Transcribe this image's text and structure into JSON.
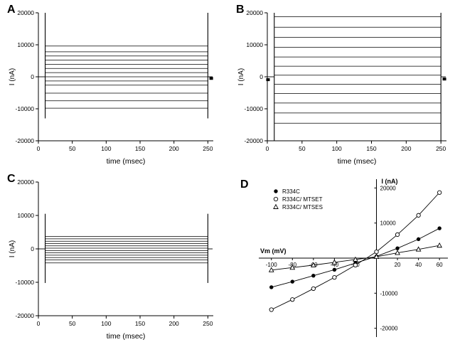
{
  "panels": [
    {
      "label": "A"
    },
    {
      "label": "B"
    },
    {
      "label": "C"
    },
    {
      "label": "D"
    }
  ],
  "chart_data": [
    {
      "panel": "A",
      "type": "line",
      "variant": "voltage-clamp-traces",
      "xlabel": "time (msec)",
      "ylabel": "I (nA)",
      "xlim": [
        0,
        258
      ],
      "ylim": [
        -20000,
        20000
      ],
      "xticks": [
        0,
        50,
        100,
        150,
        200,
        250
      ],
      "yticks": [
        -20000,
        -10000,
        0,
        10000,
        20000
      ],
      "step_start_msec": 10,
      "step_end_msec": 250,
      "trace_levels_nA": [
        9600,
        7800,
        6500,
        5200,
        3900,
        2600,
        1300,
        0,
        -1300,
        -2600,
        -5100,
        -7500,
        -9800
      ],
      "spike_range_nA": [
        -13000,
        20000
      ],
      "markers": [
        {
          "x": 255,
          "y": -500
        }
      ]
    },
    {
      "panel": "B",
      "type": "line",
      "variant": "voltage-clamp-traces",
      "xlabel": "time (msec)",
      "ylabel": "I (nA)",
      "xlim": [
        0,
        258
      ],
      "ylim": [
        -20000,
        20000
      ],
      "xticks": [
        0,
        50,
        100,
        150,
        200,
        250
      ],
      "yticks": [
        -20000,
        -10000,
        0,
        10000,
        20000
      ],
      "step_start_msec": 10,
      "step_end_msec": 250,
      "trace_levels_nA": [
        18800,
        15500,
        12300,
        9200,
        6200,
        3300,
        500,
        -2300,
        -5200,
        -8200,
        -11300,
        -14500
      ],
      "spike_range_nA": [
        -20000,
        20000
      ],
      "markers": [
        {
          "x": 1,
          "y": -900
        },
        {
          "x": 255,
          "y": -700
        }
      ]
    },
    {
      "panel": "C",
      "type": "line",
      "variant": "voltage-clamp-traces",
      "xlabel": "time (msec)",
      "ylabel": "I (nA)",
      "xlim": [
        0,
        258
      ],
      "ylim": [
        -20000,
        20000
      ],
      "xticks": [
        0,
        50,
        100,
        150,
        200,
        250
      ],
      "yticks": [
        -20000,
        -10000,
        0,
        10000,
        20000
      ],
      "step_start_msec": 10,
      "step_end_msec": 250,
      "trace_levels_nA": [
        3700,
        3000,
        2300,
        1600,
        900,
        200,
        -500,
        -1200,
        -1900,
        -2600,
        -3300,
        -4200
      ],
      "spike_range_nA": [
        -10200,
        10500
      ],
      "markers": []
    },
    {
      "panel": "D",
      "type": "scatter",
      "variant": "iv-curve",
      "xlabel": "Vm (mV)",
      "ylabel": "I (nA)",
      "xlim": [
        -112,
        68
      ],
      "ylim": [
        -22500,
        22500
      ],
      "xticks": [
        -100,
        -80,
        -60,
        -40,
        -20,
        20,
        40,
        60
      ],
      "yticks": [
        -20000,
        -10000,
        10000,
        20000
      ],
      "x": [
        -100,
        -80,
        -60,
        -40,
        -20,
        0,
        20,
        40,
        60
      ],
      "series": [
        {
          "name": "R334C",
          "marker": "filled-circle",
          "values": [
            -8300,
            -6700,
            -5000,
            -3300,
            -1400,
            500,
            2800,
            5400,
            8500
          ]
        },
        {
          "name": "R334C/ MTSET",
          "marker": "open-circle",
          "values": [
            -14700,
            -11800,
            -8700,
            -5500,
            -2000,
            1800,
            6700,
            12200,
            18700
          ]
        },
        {
          "name": "R334C/ MTSES",
          "marker": "open-triangle",
          "values": [
            -3400,
            -2700,
            -2000,
            -1200,
            -400,
            400,
            1500,
            2500,
            3600
          ]
        }
      ],
      "legend_position": "top-left",
      "grid": false,
      "line_color": "#000000",
      "background_color": "#ffffff"
    }
  ]
}
